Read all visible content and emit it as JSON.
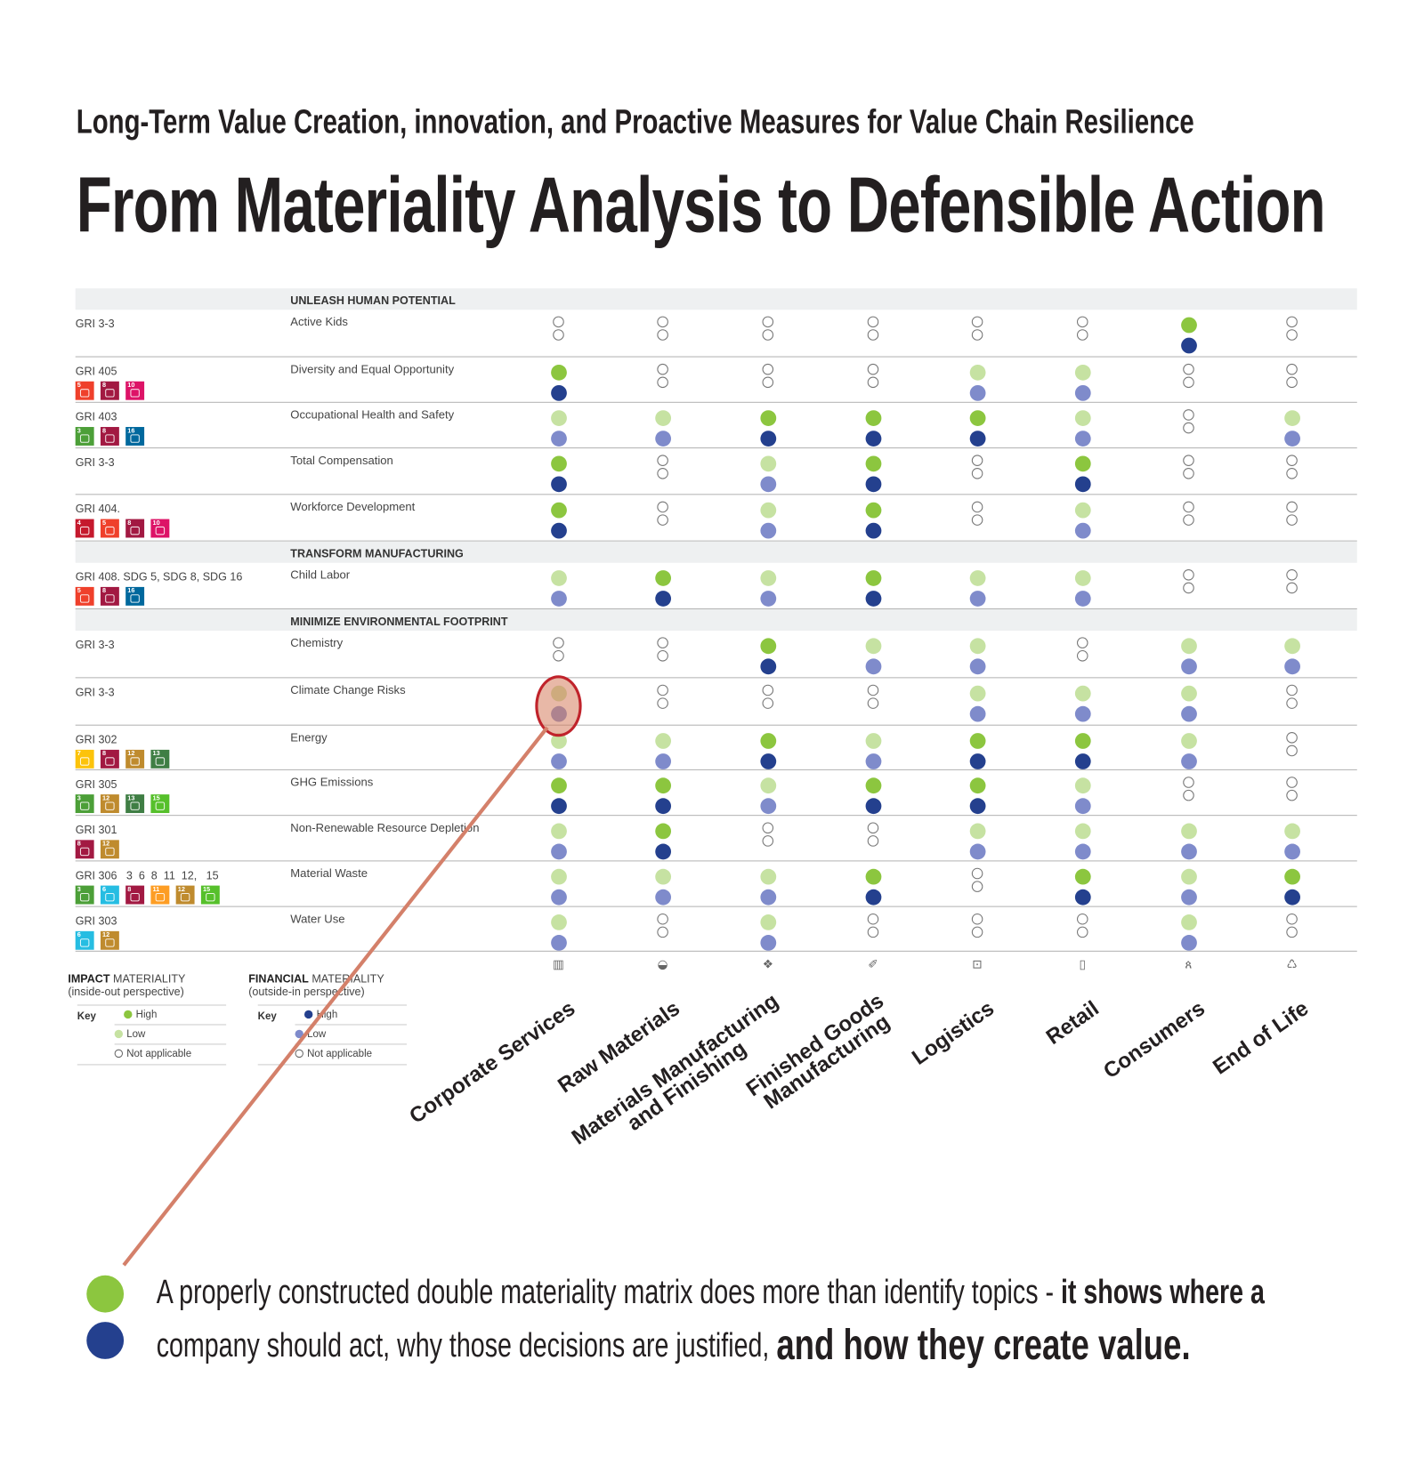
{
  "header": {
    "subtitle": "Long-Term Value Creation, innovation, and Proactive Measures for Value Chain Resilience",
    "title": "From Materiality Analysis to Defensible Action"
  },
  "colors": {
    "impact_high": "#8cc63f",
    "impact_low": "#c6e2a2",
    "financial_high": "#24408e",
    "financial_low": "#7f8bcb",
    "highlight_stroke": "#c0232b",
    "callout_line": "#d4806a"
  },
  "sdg_colors": {
    "3": "#4c9f38",
    "4": "#c5192d",
    "5": "#ef402b",
    "6": "#26bde2",
    "7": "#fcc30b",
    "8": "#a21942",
    "10": "#dd1367",
    "11": "#fd9d24",
    "12": "#bf8b2e",
    "13": "#3f7e44",
    "15": "#56c02b",
    "16": "#00689d"
  },
  "columns": [
    {
      "label": "Corporate Services",
      "icon": "building-icon"
    },
    {
      "label": "Raw Materials",
      "icon": "cotton-boll-icon"
    },
    {
      "label": "Materials Manufacturing and Finishing",
      "icon": "fabric-icon"
    },
    {
      "label": "Finished Goods Manufacturing",
      "icon": "shoe-icon"
    },
    {
      "label": "Logistics",
      "icon": "truck-icon"
    },
    {
      "label": "Retail",
      "icon": "shopping-bag-icon"
    },
    {
      "label": "Consumers",
      "icon": "runner-icon"
    },
    {
      "label": "End of Life",
      "icon": "recycle-icon"
    }
  ],
  "sections": [
    {
      "title": "UNLEASH HUMAN POTENTIAL",
      "rows": [
        {
          "gri": "GRI 3-3",
          "sdgs": [],
          "topic": "Active Kids",
          "values": [
            "NN",
            "NN",
            "NN",
            "NN",
            "NN",
            "NN",
            "HH",
            "NN"
          ]
        },
        {
          "gri": "GRI 405",
          "sdgs": [
            5,
            8,
            10
          ],
          "topic": "Diversity and Equal Opportunity",
          "values": [
            "HH",
            "NN",
            "NN",
            "NN",
            "LL",
            "LL",
            "NN",
            "NN"
          ]
        },
        {
          "gri": "GRI 403",
          "sdgs": [
            3,
            8,
            16
          ],
          "topic": "Occupational Health and Safety",
          "values": [
            "LL",
            "LL",
            "HH",
            "HH",
            "HH",
            "LL",
            "NN",
            "LL"
          ]
        },
        {
          "gri": "GRI 3-3",
          "sdgs": [],
          "topic": "Total Compensation",
          "values": [
            "HH",
            "NN",
            "LL",
            "HH",
            "NN",
            "HH",
            "NN",
            "NN"
          ]
        },
        {
          "gri": "GRI 404.",
          "sdgs": [
            4,
            5,
            8,
            10
          ],
          "topic": "Workforce Development",
          "values": [
            "HH",
            "NN",
            "LL",
            "HH",
            "NN",
            "LL",
            "NN",
            "NN"
          ]
        }
      ]
    },
    {
      "title": "TRANSFORM MANUFACTURING",
      "rows": [
        {
          "gri": "GRI 408. SDG 5, SDG 8, SDG 16",
          "sdgs": [
            5,
            8,
            16
          ],
          "topic": "Child Labor",
          "values": [
            "LL",
            "HH",
            "LL",
            "HH",
            "LL",
            "LL",
            "NN",
            "NN"
          ]
        }
      ]
    },
    {
      "title": "MINIMIZE ENVIRONMENTAL FOOTPRINT",
      "rows": [
        {
          "gri": "GRI 3-3",
          "sdgs": [],
          "topic": "Chemistry",
          "values": [
            "NN",
            "NN",
            "HH",
            "LL",
            "LL",
            "NN",
            "LL",
            "LL"
          ]
        },
        {
          "gri": "GRI 3-3",
          "sdgs": [],
          "topic": "Climate Change Risks",
          "values": [
            "LL",
            "NN",
            "NN",
            "NN",
            "LL",
            "LL",
            "LL",
            "NN"
          ],
          "highlight_column": 0
        },
        {
          "gri": "GRI 302",
          "sdgs": [
            7,
            8,
            12,
            13
          ],
          "topic": "Energy",
          "values": [
            "LL",
            "LL",
            "HH",
            "LL",
            "HH",
            "HH",
            "LL",
            "NN"
          ]
        },
        {
          "gri": "GRI 305",
          "sdgs": [
            3,
            12,
            13,
            15
          ],
          "topic": "GHG Emissions",
          "values": [
            "HH",
            "HH",
            "LL",
            "HH",
            "HH",
            "LL",
            "NN",
            "NN"
          ]
        },
        {
          "gri": "GRI 301",
          "sdgs": [
            8,
            12
          ],
          "topic": "Non-Renewable Resource Depletion",
          "values": [
            "LL",
            "HH",
            "NN",
            "NN",
            "LL",
            "LL",
            "LL",
            "LL"
          ]
        },
        {
          "gri": "GRI 306   3  6  8  11  12,   15",
          "sdgs": [
            3,
            6,
            8,
            11,
            12,
            15
          ],
          "topic": "Material Waste",
          "values": [
            "LL",
            "LL",
            "LL",
            "HH",
            "NN",
            "HH",
            "LL",
            "HH"
          ]
        },
        {
          "gri": "GRI 303",
          "sdgs": [
            6,
            12
          ],
          "topic": "Water Use",
          "values": [
            "LL",
            "NN",
            "LL",
            "NN",
            "NN",
            "NN",
            "LL",
            "NN"
          ]
        }
      ]
    }
  ],
  "legend": {
    "impact": {
      "title_bold": "IMPACT",
      "title_rest": " MATERIALITY",
      "subtitle": "(inside-out perspective)",
      "key": "Key",
      "items": [
        "High",
        "Low",
        "Not applicable"
      ]
    },
    "financial": {
      "title_bold": "FINANCIAL",
      "title_rest": " MATERIALITY",
      "subtitle": "(outside-in perspective)",
      "key": "Key",
      "items": [
        "High",
        "Low",
        "Not applicable"
      ]
    }
  },
  "callout": {
    "line1_regular": "A properly constructed double materiality matrix does more than identify topics - ",
    "line1_bold": "it shows where a",
    "line2_regular": "company should act, why those decisions are justified, ",
    "line2_bold": "and how they create value."
  }
}
